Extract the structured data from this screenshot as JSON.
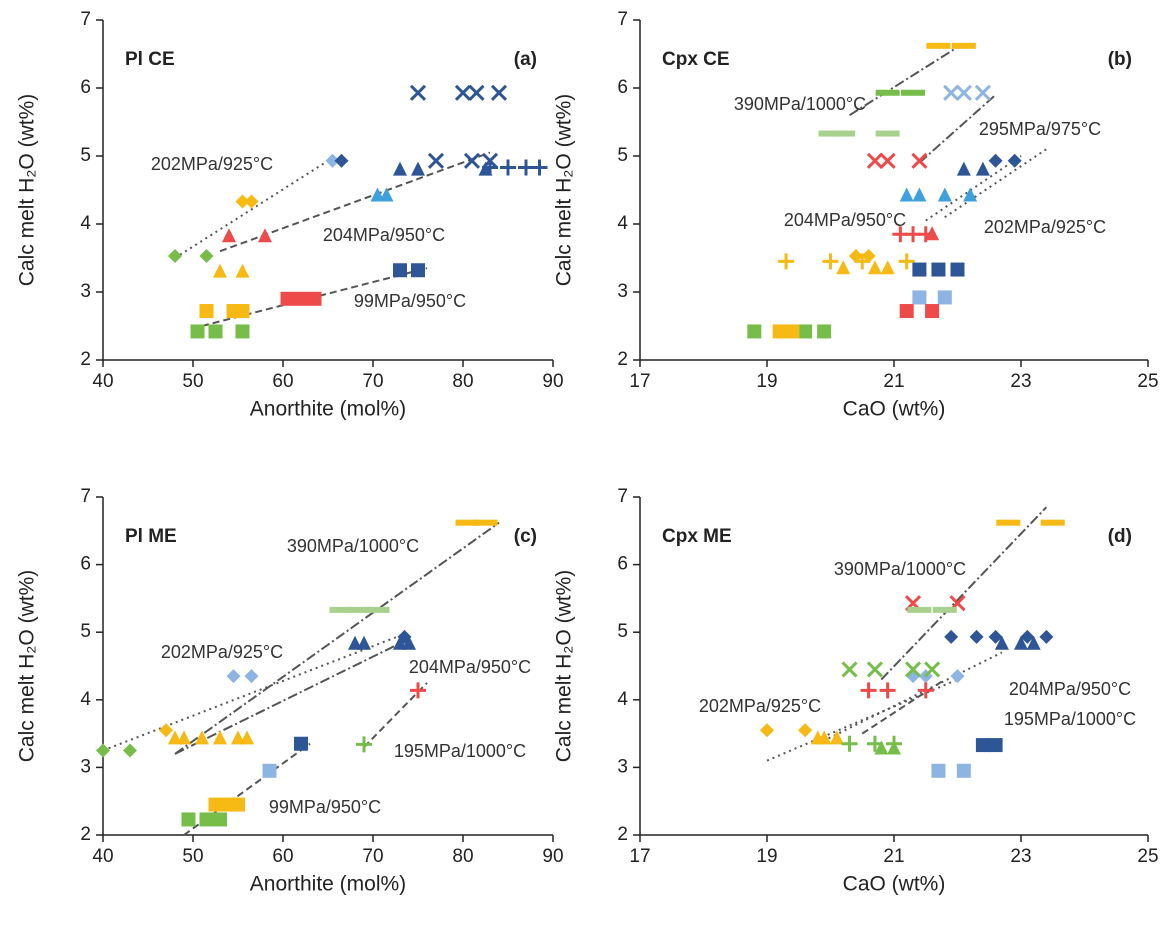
{
  "chart_data": [
    {
      "type": "scatter",
      "panel_label": "Pl CE",
      "panel_letter": "(a)",
      "x_label": "Anorthite (mol%)",
      "y_label": "Calc melt H₂O (wt%)",
      "xlim": [
        40,
        90
      ],
      "xticks": [
        40,
        50,
        60,
        70,
        80,
        90
      ],
      "ylim": [
        2,
        7
      ],
      "yticks": [
        2,
        3,
        4,
        5,
        6,
        7
      ],
      "series": [
        {
          "marker": "x",
          "color": "#2e5596",
          "x": [
            75,
            80,
            81.5,
            84,
            77,
            81,
            83
          ],
          "y": [
            5.93,
            5.93,
            5.93,
            5.93,
            4.93,
            4.93,
            4.93
          ]
        },
        {
          "marker": "plus",
          "color": "#2e5596",
          "x": [
            83,
            85,
            87,
            88.5
          ],
          "y": [
            4.83,
            4.83,
            4.83,
            4.83
          ]
        },
        {
          "marker": "diamond",
          "color": "#8eb4e3",
          "x": [
            65.5
          ],
          "y": [
            4.93
          ]
        },
        {
          "marker": "diamond",
          "color": "#2e5596",
          "x": [
            66.5
          ],
          "y": [
            4.93
          ]
        },
        {
          "marker": "triangle",
          "color": "#2e5596",
          "x": [
            73,
            75,
            82.5
          ],
          "y": [
            4.8,
            4.8,
            4.8
          ]
        },
        {
          "marker": "triangle",
          "color": "#3ea0dc",
          "x": [
            70.5,
            71.5
          ],
          "y": [
            4.42,
            4.42
          ]
        },
        {
          "marker": "triangle",
          "color": "#ee4a4a",
          "x": [
            54,
            58
          ],
          "y": [
            3.82,
            3.82
          ]
        },
        {
          "marker": "diamond",
          "color": "#f7b913",
          "x": [
            55.5,
            56.5
          ],
          "y": [
            4.33,
            4.33
          ]
        },
        {
          "marker": "diamond",
          "color": "#77bd4a",
          "x": [
            48,
            51.5
          ],
          "y": [
            3.53,
            3.53
          ]
        },
        {
          "marker": "triangle",
          "color": "#f7b913",
          "x": [
            53,
            55.5
          ],
          "y": [
            3.3,
            3.3
          ]
        },
        {
          "marker": "square",
          "color": "#2e5596",
          "x": [
            73,
            75
          ],
          "y": [
            3.32,
            3.32
          ]
        },
        {
          "marker": "square",
          "color": "#ee4a4a",
          "x": [
            60.5,
            62,
            63.5
          ],
          "y": [
            2.9,
            2.9,
            2.9
          ]
        },
        {
          "marker": "square",
          "color": "#f7b913",
          "x": [
            51.5,
            54.5,
            55.5
          ],
          "y": [
            2.72,
            2.72,
            2.72
          ]
        },
        {
          "marker": "square",
          "color": "#77bd4a",
          "x": [
            50.5,
            52.5,
            55.5
          ],
          "y": [
            2.42,
            2.42,
            2.42
          ]
        }
      ],
      "trend_lines": [
        {
          "label": "202MPa/925°C",
          "dash": "dotted",
          "x": [
            48,
            65
          ],
          "y": [
            3.5,
            4.93
          ]
        },
        {
          "label": "204MPa/950°C",
          "dash": "dashed",
          "x": [
            53,
            83
          ],
          "y": [
            3.6,
            5.05
          ]
        },
        {
          "label": "99MPa/950°C",
          "dash": "dashed",
          "x": [
            51,
            76
          ],
          "y": [
            2.5,
            3.35
          ]
        }
      ]
    },
    {
      "type": "scatter",
      "panel_label": "Cpx CE",
      "panel_letter": "(b)",
      "x_label": "CaO (wt%)",
      "y_label": "Calc melt H₂O (wt%)",
      "xlim": [
        17,
        25
      ],
      "xticks": [
        17,
        19,
        21,
        23,
        25
      ],
      "ylim": [
        2,
        7
      ],
      "yticks": [
        2,
        3,
        4,
        5,
        6,
        7
      ],
      "series": [
        {
          "marker": "bar",
          "color": "#f7b913",
          "x": [
            21.7,
            22.1
          ],
          "y": [
            6.62,
            6.62
          ]
        },
        {
          "marker": "x",
          "color": "#8eb4e3",
          "x": [
            21.9,
            22.1,
            22.4
          ],
          "y": [
            5.93,
            5.93,
            5.93
          ]
        },
        {
          "marker": "bar",
          "color": "#77bd4a",
          "x": [
            20.9,
            21.3
          ],
          "y": [
            5.93,
            5.93
          ]
        },
        {
          "marker": "bar",
          "color": "#a9d18e",
          "x": [
            20.0,
            20.2,
            20.9
          ],
          "y": [
            5.33,
            5.33,
            5.33
          ]
        },
        {
          "marker": "x",
          "color": "#ee4a4a",
          "x": [
            20.7,
            20.9,
            21.4
          ],
          "y": [
            4.93,
            4.93,
            4.93
          ]
        },
        {
          "marker": "diamond",
          "color": "#2e5596",
          "x": [
            22.6,
            22.9
          ],
          "y": [
            4.93,
            4.93
          ]
        },
        {
          "marker": "triangle",
          "color": "#2e5596",
          "x": [
            22.1,
            22.4
          ],
          "y": [
            4.8,
            4.8
          ]
        },
        {
          "marker": "triangle",
          "color": "#3ea0dc",
          "x": [
            21.2,
            21.4,
            21.8,
            22.2
          ],
          "y": [
            4.42,
            4.42,
            4.42,
            4.42
          ]
        },
        {
          "marker": "plus",
          "color": "#ee4a4a",
          "x": [
            21.1,
            21.3,
            21.5
          ],
          "y": [
            3.85,
            3.85,
            3.85
          ]
        },
        {
          "marker": "triangle",
          "color": "#ee4a4a",
          "x": [
            21.6
          ],
          "y": [
            3.85
          ]
        },
        {
          "marker": "diamond",
          "color": "#f7b913",
          "x": [
            20.4,
            20.6
          ],
          "y": [
            3.53,
            3.53
          ]
        },
        {
          "marker": "plus",
          "color": "#f7b913",
          "x": [
            19.3,
            20.0,
            20.5,
            21.2
          ],
          "y": [
            3.45,
            3.45,
            3.45,
            3.45
          ]
        },
        {
          "marker": "triangle",
          "color": "#f7b913",
          "x": [
            20.2,
            20.7,
            20.9
          ],
          "y": [
            3.35,
            3.35,
            3.35
          ]
        },
        {
          "marker": "square",
          "color": "#2e5596",
          "x": [
            21.4,
            21.7,
            22.0
          ],
          "y": [
            3.33,
            3.33,
            3.33
          ]
        },
        {
          "marker": "square",
          "color": "#8eb4e3",
          "x": [
            21.4,
            21.8
          ],
          "y": [
            2.92,
            2.92
          ]
        },
        {
          "marker": "square",
          "color": "#ee4a4a",
          "x": [
            21.2,
            21.6
          ],
          "y": [
            2.72,
            2.72
          ]
        },
        {
          "marker": "square",
          "color": "#77bd4a",
          "x": [
            18.8,
            19.6,
            19.9
          ],
          "y": [
            2.42,
            2.42,
            2.42
          ]
        },
        {
          "marker": "square",
          "color": "#f7b913",
          "x": [
            19.2,
            19.4
          ],
          "y": [
            2.42,
            2.42
          ]
        }
      ],
      "trend_lines": [
        {
          "label": "390MPa/1000°C",
          "dash": "dashdot",
          "x": [
            20.3,
            22.0
          ],
          "y": [
            5.6,
            6.6
          ]
        },
        {
          "label": "295MPa/975°C",
          "dash": "dashdot",
          "x": [
            21.4,
            22.6
          ],
          "y": [
            4.9,
            5.9
          ]
        },
        {
          "label": "204MPa/950°C",
          "dash": "dotted",
          "x": [
            21.5,
            23.0
          ],
          "y": [
            4.05,
            5.0
          ]
        },
        {
          "label": "202MPa/925°C",
          "dash": "dotted",
          "x": [
            21.8,
            23.4
          ],
          "y": [
            4.1,
            5.1
          ]
        }
      ]
    },
    {
      "type": "scatter",
      "panel_label": "Pl ME",
      "panel_letter": "(c)",
      "x_label": "Anorthite (mol%)",
      "y_label": "Calc melt H₂O (wt%)",
      "xlim": [
        40,
        90
      ],
      "xticks": [
        40,
        50,
        60,
        70,
        80,
        90
      ],
      "ylim": [
        2,
        7
      ],
      "yticks": [
        2,
        3,
        4,
        5,
        6,
        7
      ],
      "series": [
        {
          "marker": "bar",
          "color": "#f7b913",
          "x": [
            80.5,
            82.5
          ],
          "y": [
            6.62,
            6.62
          ]
        },
        {
          "marker": "bar",
          "color": "#a9d18e",
          "x": [
            66.5,
            68.5,
            70.5
          ],
          "y": [
            5.33,
            5.33,
            5.33
          ]
        },
        {
          "marker": "triangle",
          "color": "#2e5596",
          "x": [
            68,
            69,
            73,
            74
          ],
          "y": [
            4.83,
            4.83,
            4.83,
            4.83
          ]
        },
        {
          "marker": "diamond",
          "color": "#2e5596",
          "x": [
            73.5
          ],
          "y": [
            4.93
          ]
        },
        {
          "marker": "diamond",
          "color": "#8eb4e3",
          "x": [
            54.5,
            56.5
          ],
          "y": [
            4.35,
            4.35
          ]
        },
        {
          "marker": "plus",
          "color": "#ee4a4a",
          "x": [
            75
          ],
          "y": [
            4.14
          ]
        },
        {
          "marker": "plus",
          "color": "#77bd4a",
          "x": [
            69
          ],
          "y": [
            3.34
          ]
        },
        {
          "marker": "diamond",
          "color": "#f7b913",
          "x": [
            47
          ],
          "y": [
            3.55
          ]
        },
        {
          "marker": "triangle",
          "color": "#f7b913",
          "x": [
            48,
            49,
            51,
            53,
            55,
            56
          ],
          "y": [
            3.43,
            3.43,
            3.43,
            3.43,
            3.43,
            3.43
          ]
        },
        {
          "marker": "diamond",
          "color": "#77bd4a",
          "x": [
            40,
            43
          ],
          "y": [
            3.25,
            3.25
          ]
        },
        {
          "marker": "square",
          "color": "#2e5596",
          "x": [
            62
          ],
          "y": [
            3.35
          ]
        },
        {
          "marker": "square",
          "color": "#8eb4e3",
          "x": [
            58.5
          ],
          "y": [
            2.95
          ]
        },
        {
          "marker": "square",
          "color": "#f7b913",
          "x": [
            52.5,
            54,
            55
          ],
          "y": [
            2.45,
            2.45,
            2.45
          ]
        },
        {
          "marker": "square",
          "color": "#77bd4a",
          "x": [
            49.5,
            51.5,
            53
          ],
          "y": [
            2.23,
            2.23,
            2.23
          ]
        }
      ],
      "trend_lines": [
        {
          "label": "390MPa/1000°C",
          "dash": "dashdot",
          "x": [
            48,
            84
          ],
          "y": [
            3.2,
            6.62
          ]
        },
        {
          "label": "202MPa/925°C",
          "dash": "dotted",
          "x": [
            40,
            74
          ],
          "y": [
            3.25,
            5.0
          ]
        },
        {
          "label": "204MPa/950°C",
          "dash": "dashdot",
          "x": [
            48,
            74
          ],
          "y": [
            3.2,
            4.9
          ]
        },
        {
          "label": "195MPa/1000°C",
          "dash": "dashed",
          "x": [
            69,
            76
          ],
          "y": [
            3.3,
            4.25
          ]
        },
        {
          "label": "99MPa/950°C",
          "dash": "dashed",
          "x": [
            49,
            63
          ],
          "y": [
            2.0,
            3.35
          ]
        }
      ]
    },
    {
      "type": "scatter",
      "panel_label": "Cpx ME",
      "panel_letter": "(d)",
      "x_label": "CaO (wt%)",
      "y_label": "Calc melt H₂O (wt%)",
      "xlim": [
        17,
        25
      ],
      "xticks": [
        17,
        19,
        21,
        23,
        25
      ],
      "ylim": [
        2,
        7
      ],
      "yticks": [
        2,
        3,
        4,
        5,
        6,
        7
      ],
      "series": [
        {
          "marker": "bar",
          "color": "#f7b913",
          "x": [
            22.8,
            23.5
          ],
          "y": [
            6.62,
            6.62
          ]
        },
        {
          "marker": "x",
          "color": "#ee4a4a",
          "x": [
            21.3,
            22.0
          ],
          "y": [
            5.43,
            5.43
          ]
        },
        {
          "marker": "bar",
          "color": "#a9d18e",
          "x": [
            21.4,
            21.8
          ],
          "y": [
            5.33,
            5.33
          ]
        },
        {
          "marker": "diamond",
          "color": "#2e5596",
          "x": [
            21.9,
            22.3,
            22.6,
            23.1,
            23.4
          ],
          "y": [
            4.93,
            4.93,
            4.93,
            4.93,
            4.93
          ]
        },
        {
          "marker": "triangle",
          "color": "#2e5596",
          "x": [
            22.7,
            23.0,
            23.2
          ],
          "y": [
            4.83,
            4.83,
            4.83
          ]
        },
        {
          "marker": "diamond",
          "color": "#8eb4e3",
          "x": [
            21.3,
            21.5,
            22.0
          ],
          "y": [
            4.35,
            4.35,
            4.35
          ]
        },
        {
          "marker": "x",
          "color": "#77bd4a",
          "x": [
            20.3,
            20.7,
            21.3,
            21.6
          ],
          "y": [
            4.45,
            4.45,
            4.45,
            4.45
          ]
        },
        {
          "marker": "plus",
          "color": "#ee4a4a",
          "x": [
            20.6,
            20.9,
            21.5
          ],
          "y": [
            4.14,
            4.14,
            4.14
          ]
        },
        {
          "marker": "diamond",
          "color": "#f7b913",
          "x": [
            19.0,
            19.6
          ],
          "y": [
            3.55,
            3.55
          ]
        },
        {
          "marker": "triangle",
          "color": "#f7b913",
          "x": [
            19.8,
            19.9,
            20.1
          ],
          "y": [
            3.43,
            3.43,
            3.43
          ]
        },
        {
          "marker": "plus",
          "color": "#77bd4a",
          "x": [
            20.3,
            20.7,
            21.0
          ],
          "y": [
            3.35,
            3.35,
            3.35
          ]
        },
        {
          "marker": "triangle",
          "color": "#77bd4a",
          "x": [
            20.8,
            21.0
          ],
          "y": [
            3.28,
            3.28
          ]
        },
        {
          "marker": "square",
          "color": "#2e5596",
          "x": [
            22.4,
            22.6
          ],
          "y": [
            3.33,
            3.33
          ]
        },
        {
          "marker": "square",
          "color": "#8eb4e3",
          "x": [
            21.7,
            22.1
          ],
          "y": [
            2.95,
            2.95
          ]
        }
      ],
      "trend_lines": [
        {
          "label": "390MPa/1000°C",
          "dash": "dashdot",
          "x": [
            20.8,
            23.4
          ],
          "y": [
            4.3,
            6.85
          ]
        },
        {
          "label": "204MPa/950°C",
          "dash": "dotted",
          "x": [
            19.8,
            22.7
          ],
          "y": [
            3.35,
            4.7
          ]
        },
        {
          "label": "202MPa/925°C",
          "dash": "dotted",
          "x": [
            19.0,
            22.0
          ],
          "y": [
            3.1,
            4.3
          ]
        },
        {
          "label": "195MPa/1000°C",
          "dash": "dashed",
          "x": [
            20.5,
            21.8
          ],
          "y": [
            3.5,
            4.3
          ]
        }
      ]
    }
  ]
}
